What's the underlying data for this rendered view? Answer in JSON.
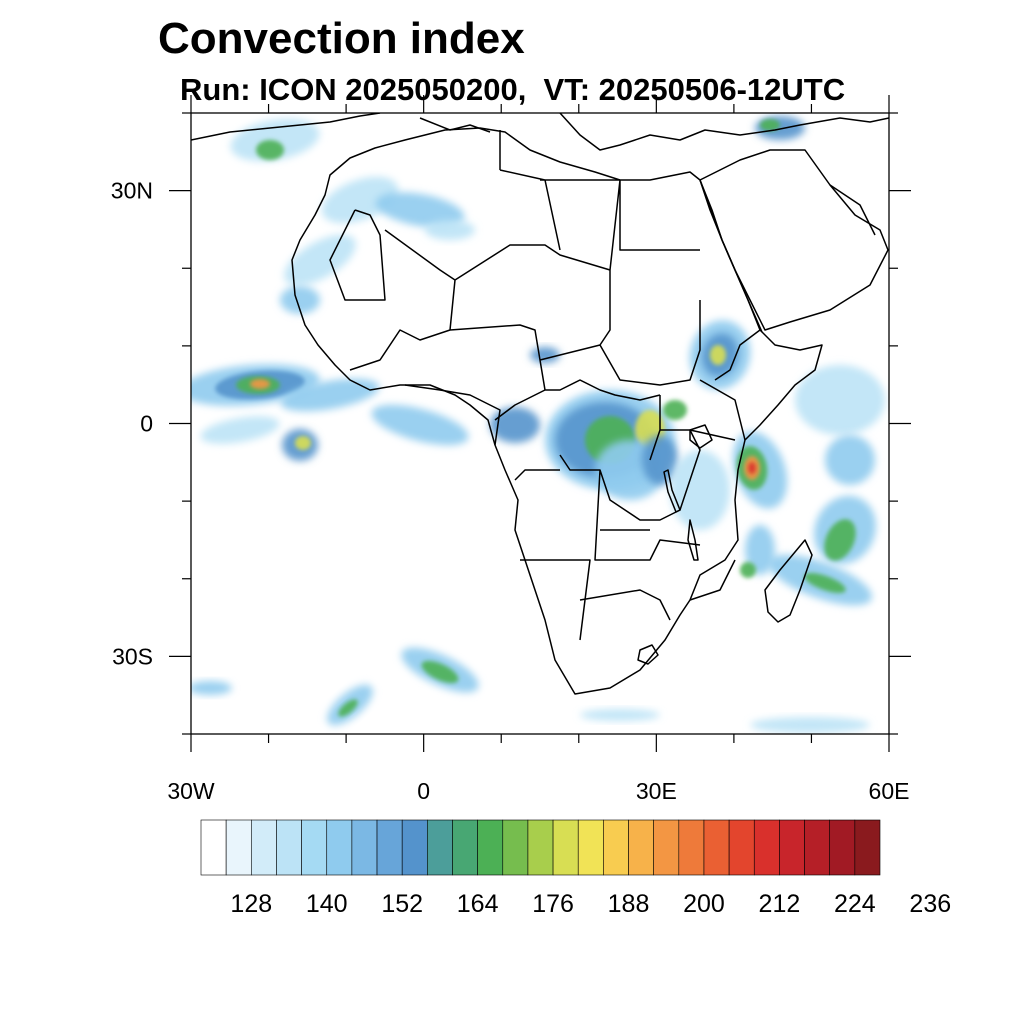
{
  "title": "Convection index",
  "subtitle": "Run: ICON 2025050200,  VT: 20250506-12UTC",
  "map": {
    "lon_range": [
      -30,
      60
    ],
    "lat_range": [
      -40,
      40
    ],
    "y_ticks": [
      {
        "lat": 30,
        "label": "30N"
      },
      {
        "lat": 0,
        "label": "0"
      },
      {
        "lat": -30,
        "label": "30S"
      }
    ],
    "x_ticks": [
      {
        "lon": -30,
        "label": "30W"
      },
      {
        "lon": 0,
        "label": "0"
      },
      {
        "lon": 30,
        "label": "30E"
      },
      {
        "lon": 60,
        "label": "60E"
      }
    ],
    "minor_step_deg": 10
  },
  "colorbar": {
    "colors": [
      "#ffffff",
      "#e9f5fc",
      "#d2ecf9",
      "#bce3f6",
      "#a5daf3",
      "#8fcbee",
      "#7bb8e4",
      "#67a5d9",
      "#5493cc",
      "#4c9e9a",
      "#48a773",
      "#4cb055",
      "#76bd4e",
      "#a8ce4c",
      "#d8de53",
      "#f1e356",
      "#f8cc50",
      "#f7b24a",
      "#f39643",
      "#ee7a3a",
      "#ea6033",
      "#e3452d",
      "#d9302c",
      "#c8252b",
      "#b51f27",
      "#a11a24",
      "#8a1a1e"
    ],
    "labels": [
      "128",
      "140",
      "152",
      "164",
      "176",
      "188",
      "200",
      "212",
      "224",
      "236"
    ]
  },
  "features": {
    "convection_colors": [
      "#bce3f6",
      "#8fcbee",
      "#5493cc",
      "#4cb055",
      "#d8de53",
      "#f39643",
      "#d9302c"
    ]
  }
}
